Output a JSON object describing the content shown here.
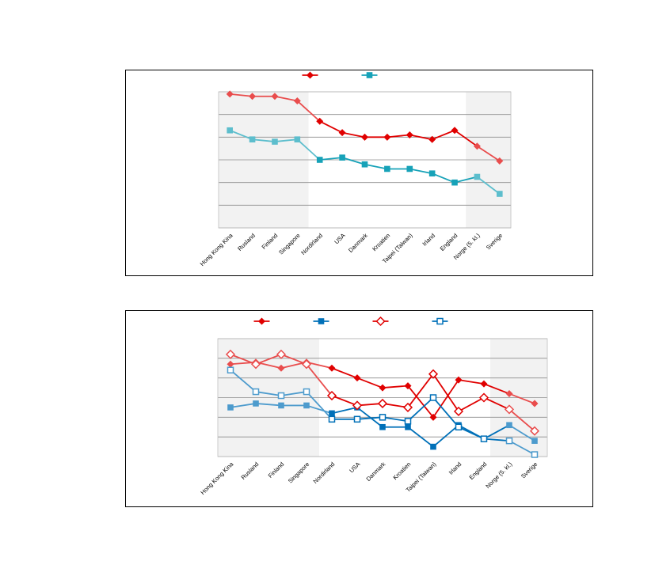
{
  "charts": [
    {
      "type": "line",
      "categories": [
        "Hong Kong Kina",
        "Rusland",
        "Finland",
        "Singapore",
        "Nordirland",
        "USA",
        "Danmark",
        "Kroatien",
        "Taipei (Taiwan)",
        "Irland",
        "England",
        "Norge (5. kl.)",
        "Sverige"
      ],
      "ylim": [
        0,
        6
      ],
      "grid": true,
      "legend_position": "top",
      "shaded_categories": [
        0,
        1,
        2,
        3,
        11,
        12
      ],
      "series": [
        {
          "color": "#e00000",
          "marker": "diamond-filled",
          "values": [
            5.9,
            5.8,
            5.8,
            5.6,
            4.7,
            4.2,
            4.0,
            4.0,
            4.1,
            3.9,
            4.3,
            3.6,
            2.95
          ]
        },
        {
          "color": "#17a2b8",
          "marker": "square-filled",
          "values": [
            4.3,
            3.9,
            3.8,
            3.9,
            3.0,
            3.1,
            2.8,
            2.6,
            2.6,
            2.4,
            2.0,
            2.25,
            1.5
          ]
        }
      ]
    },
    {
      "type": "line",
      "categories": [
        "Hong Kong Kina",
        "Rusland",
        "Finland",
        "Singapore",
        "Nordirland",
        "USA",
        "Danmark",
        "Kroatien",
        "Taipei (Taiwan)",
        "Irland",
        "England",
        "Norge (5. kl.)",
        "Sverige"
      ],
      "ylim": [
        0,
        6
      ],
      "grid": true,
      "legend_position": "top",
      "shaded_categories": [
        0,
        1,
        2,
        3,
        12,
        13
      ],
      "series": [
        {
          "color": "#e00000",
          "marker": "diamond-filled",
          "values": [
            4.7,
            4.8,
            4.5,
            4.8,
            4.5,
            4.0,
            3.5,
            3.6,
            2.0,
            3.9,
            3.7,
            3.2,
            2.7
          ]
        },
        {
          "color": "#0070b8",
          "marker": "square-filled",
          "values": [
            2.5,
            2.7,
            2.6,
            2.6,
            2.2,
            2.5,
            1.5,
            1.5,
            0.5,
            1.6,
            0.9,
            1.6,
            0.8
          ]
        },
        {
          "color": "#e00000",
          "marker": "diamond-open",
          "values": [
            5.2,
            4.7,
            5.2,
            4.7,
            3.1,
            2.6,
            2.7,
            2.5,
            4.2,
            2.3,
            3.0,
            2.4,
            1.3
          ]
        },
        {
          "color": "#0070b8",
          "marker": "square-open",
          "values": [
            4.4,
            3.3,
            3.1,
            3.3,
            1.9,
            1.9,
            2.0,
            1.8,
            3.0,
            1.5,
            0.9,
            0.8,
            0.1
          ]
        }
      ]
    }
  ]
}
